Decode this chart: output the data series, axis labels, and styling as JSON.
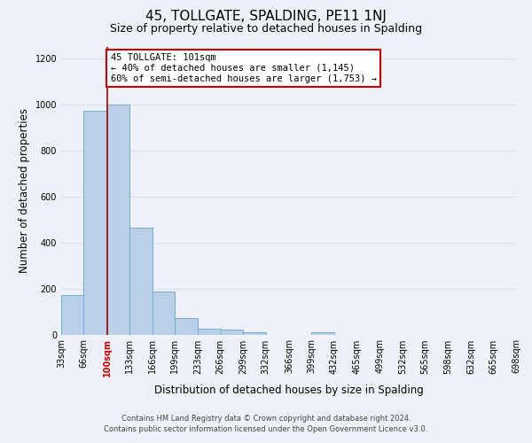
{
  "title": "45, TOLLGATE, SPALDING, PE11 1NJ",
  "subtitle": "Size of property relative to detached houses in Spalding",
  "xlabel": "Distribution of detached houses by size in Spalding",
  "ylabel": "Number of detached properties",
  "bar_left_edges": [
    33,
    66,
    100,
    133,
    166,
    199,
    233,
    266,
    299,
    332,
    366,
    399,
    432,
    465,
    499,
    532,
    565,
    598,
    632,
    665
  ],
  "bar_heights": [
    170,
    970,
    1000,
    465,
    185,
    70,
    25,
    20,
    10,
    0,
    0,
    10,
    0,
    0,
    0,
    0,
    0,
    0,
    0,
    0
  ],
  "bin_width": 33,
  "bar_color": "#b8d0e8",
  "bar_edge_color": "#7aaacc",
  "tick_labels": [
    "33sqm",
    "66sqm",
    "100sqm",
    "133sqm",
    "166sqm",
    "199sqm",
    "233sqm",
    "266sqm",
    "299sqm",
    "332sqm",
    "366sqm",
    "399sqm",
    "432sqm",
    "465sqm",
    "499sqm",
    "532sqm",
    "565sqm",
    "598sqm",
    "632sqm",
    "665sqm",
    "698sqm"
  ],
  "red_line_x": 101,
  "annotation_title": "45 TOLLGATE: 101sqm",
  "annotation_line1": "← 40% of detached houses are smaller (1,145)",
  "annotation_line2": "60% of semi-detached houses are larger (1,753) →",
  "annotation_box_color": "#ffffff",
  "annotation_box_edge_color": "#cc0000",
  "red_line_color": "#aa0000",
  "ylim": [
    0,
    1250
  ],
  "yticks": [
    0,
    200,
    400,
    600,
    800,
    1000,
    1200
  ],
  "footer1": "Contains HM Land Registry data © Crown copyright and database right 2024.",
  "footer2": "Contains public sector information licensed under the Open Government Licence v3.0.",
  "bg_color": "#eef2f8",
  "grid_color": "#d8dfe8",
  "title_fontsize": 11,
  "subtitle_fontsize": 9,
  "axis_label_fontsize": 8.5,
  "tick_fontsize": 7,
  "footer_fontsize": 6,
  "annotation_fontsize": 7.5
}
